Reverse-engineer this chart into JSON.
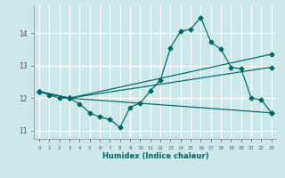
{
  "xlabel": "Humidex (Indice chaleur)",
  "background_color": "#cce8e8",
  "line_color": "#006666",
  "grid_color": "#ffffff",
  "xlim": [
    -0.5,
    23.5
  ],
  "ylim": [
    10.75,
    14.85
  ],
  "xticks": [
    0,
    1,
    2,
    3,
    4,
    5,
    6,
    7,
    8,
    9,
    10,
    11,
    12,
    13,
    14,
    15,
    16,
    17,
    18,
    19,
    20,
    21,
    22,
    23
  ],
  "yticks": [
    11,
    12,
    13,
    14
  ],
  "main_x": [
    0,
    1,
    2,
    3,
    4,
    5,
    6,
    7,
    8,
    9,
    10,
    11,
    12,
    13,
    14,
    15,
    16,
    17,
    18,
    19,
    20,
    21,
    22,
    23
  ],
  "main_y": [
    12.2,
    12.1,
    12.0,
    12.0,
    11.82,
    11.55,
    11.42,
    11.35,
    11.1,
    11.72,
    11.85,
    12.22,
    12.55,
    13.55,
    14.05,
    14.12,
    14.48,
    13.72,
    13.5,
    12.95,
    12.9,
    12.0,
    11.95,
    11.55
  ],
  "straight_lines": [
    {
      "x": [
        0,
        3,
        23
      ],
      "y": [
        12.2,
        12.0,
        11.55
      ]
    },
    {
      "x": [
        0,
        3,
        23
      ],
      "y": [
        12.2,
        12.0,
        13.35
      ]
    },
    {
      "x": [
        0,
        3,
        23
      ],
      "y": [
        12.2,
        12.0,
        12.95
      ]
    }
  ]
}
